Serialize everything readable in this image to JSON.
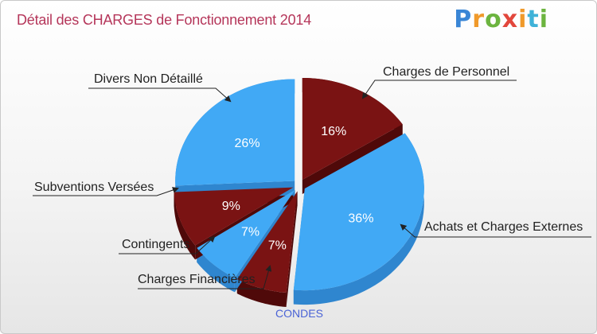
{
  "header": {
    "title": "Détail des CHARGES de Fonctionnement 2014",
    "brand": "Proxiti"
  },
  "footer": {
    "city": "CONDES"
  },
  "colors": {
    "blue_top": "#41a9f5",
    "blue_side": "#2f86cf",
    "red_top": "#7a1313",
    "red_side": "#4f0909",
    "title": "#b5365a",
    "city": "#4a63d6"
  },
  "chart_data": {
    "type": "pie",
    "title": "Détail des CHARGES de Fonctionnement 2014",
    "subtitle": "CONDES",
    "slices": [
      {
        "label": "Charges de Personnel",
        "value": 16,
        "pct_label": "16%",
        "color": "red"
      },
      {
        "label": "Achats et Charges Externes",
        "value": 36,
        "pct_label": "36%",
        "color": "blue"
      },
      {
        "label": "Charges Financières",
        "value": 7,
        "pct_label": "7%",
        "color": "red"
      },
      {
        "label": "Contingents",
        "value": 7,
        "pct_label": "7%",
        "color": "blue"
      },
      {
        "label": "Subventions Versées",
        "value": 9,
        "pct_label": "9%",
        "color": "red"
      },
      {
        "label": "Divers Non Détaillé",
        "value": 26,
        "pct_label": "26%",
        "color": "blue"
      }
    ],
    "style": "3d-exploded"
  }
}
